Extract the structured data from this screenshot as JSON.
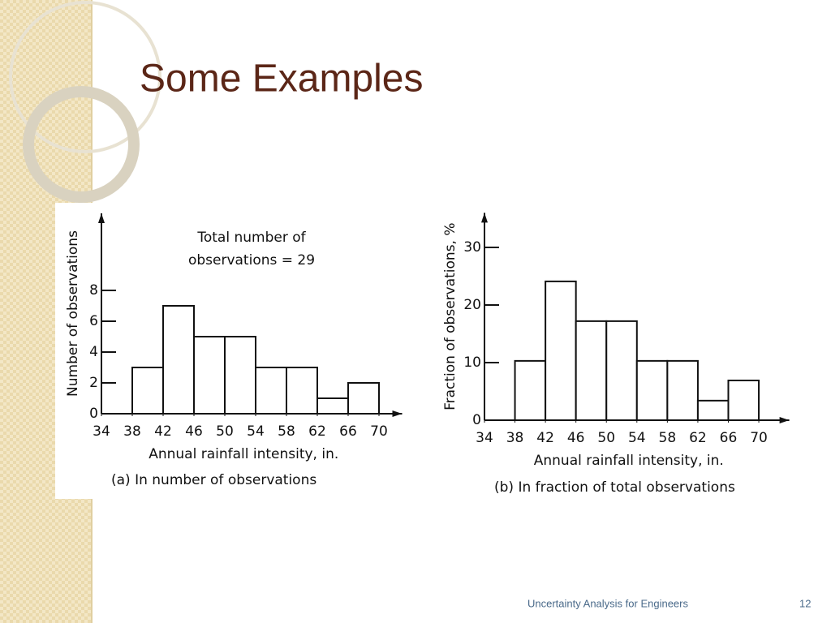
{
  "title": "Some Examples",
  "footer": "Uncertainty Analysis for Engineers",
  "page_number": "12",
  "chart_data": [
    {
      "type": "histogram",
      "annotation": [
        "Total number of",
        "observations = 29"
      ],
      "xlabel": "Annual rainfall intensity, in.",
      "ylabel": "Number of observations",
      "caption": "(a) In number of observations",
      "bins": [
        38,
        42,
        46,
        50,
        54,
        58,
        62,
        66,
        70
      ],
      "values": [
        3,
        7,
        5,
        5,
        3,
        3,
        1,
        2
      ],
      "color": "#ffffff",
      "xlim": [
        34,
        73
      ],
      "xticks": [
        34,
        38,
        42,
        46,
        50,
        54,
        58,
        62,
        66,
        70
      ],
      "ylim": [
        0,
        13
      ],
      "yticks": [
        0,
        2,
        4,
        6,
        8
      ]
    },
    {
      "type": "histogram",
      "xlabel": "Annual rainfall intensity, in.",
      "ylabel": "Fraction of observations, %",
      "caption": "(b) In fraction of total observations",
      "bins": [
        38,
        42,
        46,
        50,
        54,
        58,
        62,
        66,
        70
      ],
      "values": [
        10.3,
        24.1,
        17.2,
        17.2,
        10.3,
        10.3,
        3.4,
        6.9
      ],
      "color": "#ffffff",
      "xlim": [
        34,
        74
      ],
      "xticks": [
        34,
        38,
        42,
        46,
        50,
        54,
        58,
        62,
        66,
        70
      ],
      "ylim": [
        0,
        36
      ],
      "yticks": [
        0,
        10,
        20,
        30
      ]
    }
  ]
}
